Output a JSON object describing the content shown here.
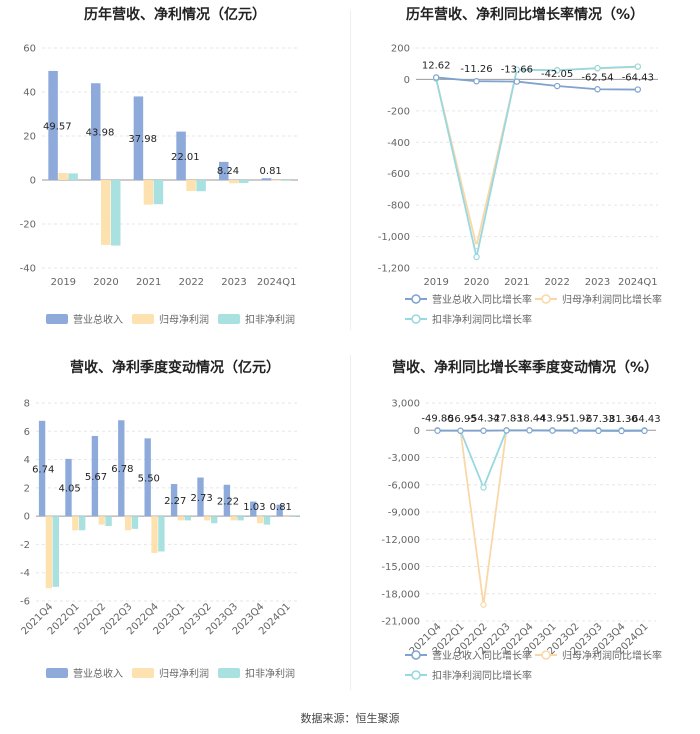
{
  "source": "数据来源：恒生聚源",
  "colors": {
    "revenue": "#8eaadb",
    "net": "#fde2b0",
    "ded": "#a9e1e1",
    "revenue_line": "#7fa2cf",
    "net_line": "#f9d8a8",
    "ded_line": "#98d8e0"
  },
  "chart_data": [
    {
      "type": "bar",
      "title": "历年营收、净利情况（亿元）",
      "categories": [
        "2019",
        "2020",
        "2021",
        "2022",
        "2023",
        "2024Q1"
      ],
      "ylim": [
        -40,
        60
      ],
      "yticks": [
        "-40",
        "-20",
        "0",
        "20",
        "40",
        "60"
      ],
      "series": [
        {
          "name": "营业总收入",
          "values": [
            49.57,
            43.98,
            37.98,
            22.01,
            8.24,
            0.81
          ],
          "labels": [
            "49.57",
            "43.98",
            "37.98",
            "22.01",
            "8.24",
            "0.81"
          ]
        },
        {
          "name": "归母净利润",
          "values": [
            3.2,
            -29.5,
            -11.2,
            -5.0,
            -1.5,
            -0.1
          ]
        },
        {
          "name": "扣非净利润",
          "values": [
            3.0,
            -29.8,
            -11.0,
            -5.1,
            -1.4,
            -0.1
          ]
        }
      ],
      "legend": "bottom"
    },
    {
      "type": "line",
      "title": "历年营收、净利同比增长率情况（%）",
      "categories": [
        "2019",
        "2020",
        "2021",
        "2022",
        "2023",
        "2024Q1"
      ],
      "ylim": [
        -1200,
        200
      ],
      "yticks": [
        "-1,200",
        "-1,000",
        "-800",
        "-600",
        "-400",
        "-200",
        "0",
        "200"
      ],
      "series": [
        {
          "name": "营业总收入同比增长率",
          "values": [
            12.62,
            -11.26,
            -13.66,
            -42.05,
            -62.54,
            -64.43
          ],
          "labels": [
            "12.62",
            "-11.26",
            "-13.66",
            "-42.05",
            "-62.54",
            "-64.43"
          ]
        },
        {
          "name": "归母净利润同比增长率",
          "values": [
            5,
            -1060,
            60,
            60,
            70,
            80
          ]
        },
        {
          "name": "扣非净利润同比增长率",
          "values": [
            5,
            -1130,
            62,
            58,
            72,
            82
          ]
        }
      ],
      "legend": "bottom"
    },
    {
      "type": "bar",
      "title": "营收、净利季度变动情况（亿元）",
      "categories": [
        "2021Q4",
        "2022Q1",
        "2022Q2",
        "2022Q3",
        "2022Q4",
        "2023Q1",
        "2023Q2",
        "2023Q3",
        "2023Q4",
        "2024Q1"
      ],
      "ylim": [
        -6,
        8
      ],
      "yticks": [
        "-6",
        "-4",
        "-2",
        "0",
        "2",
        "4",
        "6",
        "8"
      ],
      "series": [
        {
          "name": "营业总收入",
          "values": [
            6.74,
            4.05,
            5.67,
            6.78,
            5.5,
            2.27,
            2.73,
            2.22,
            1.03,
            0.81
          ],
          "labels": [
            "6.74",
            "4.05",
            "5.67",
            "6.78",
            "5.50",
            "2.27",
            "2.73",
            "2.22",
            "1.03",
            "0.81"
          ]
        },
        {
          "name": "归母净利润",
          "values": [
            -5.1,
            -1.0,
            -0.6,
            -1.0,
            -2.6,
            -0.3,
            -0.3,
            -0.3,
            -0.5,
            -0.05
          ]
        },
        {
          "name": "扣非净利润",
          "values": [
            -5.0,
            -1.0,
            -0.7,
            -0.9,
            -2.5,
            -0.3,
            -0.5,
            -0.3,
            -0.6,
            -0.05
          ]
        }
      ],
      "legend": "bottom"
    },
    {
      "type": "line",
      "title": "营收、净利同比增长率季度变动情况（%）",
      "categories": [
        "2021Q4",
        "2022Q1",
        "2022Q2",
        "2022Q3",
        "2022Q4",
        "2023Q1",
        "2023Q2",
        "2023Q3",
        "2023Q4",
        "2024Q1"
      ],
      "ylim": [
        -21000,
        3000
      ],
      "yticks": [
        "-21,000",
        "-18,000",
        "-15,000",
        "-12,000",
        "-9,000",
        "-6,000",
        "-3,000",
        "0",
        "3,000"
      ],
      "series": [
        {
          "name": "营业总收入同比增长率",
          "values": [
            -49.8,
            -56.95,
            -54.34,
            -27.83,
            -18.44,
            -43.95,
            -51.92,
            -67.33,
            -81.3,
            -64.43
          ],
          "labels": [
            "-49.80",
            "-56.95",
            "-54.34",
            "-27.83",
            "-18.44",
            "-43.95",
            "-51.92",
            "-67.33",
            "-81.30",
            "-64.43"
          ]
        },
        {
          "name": "归母净利润同比增长率",
          "values": [
            0,
            -50,
            -19200,
            0,
            0,
            0,
            0,
            0,
            0,
            0
          ]
        },
        {
          "name": "扣非净利润同比增长率",
          "values": [
            0,
            -50,
            -6300,
            0,
            0,
            0,
            0,
            0,
            0,
            0
          ]
        }
      ],
      "legend": "bottom"
    }
  ]
}
